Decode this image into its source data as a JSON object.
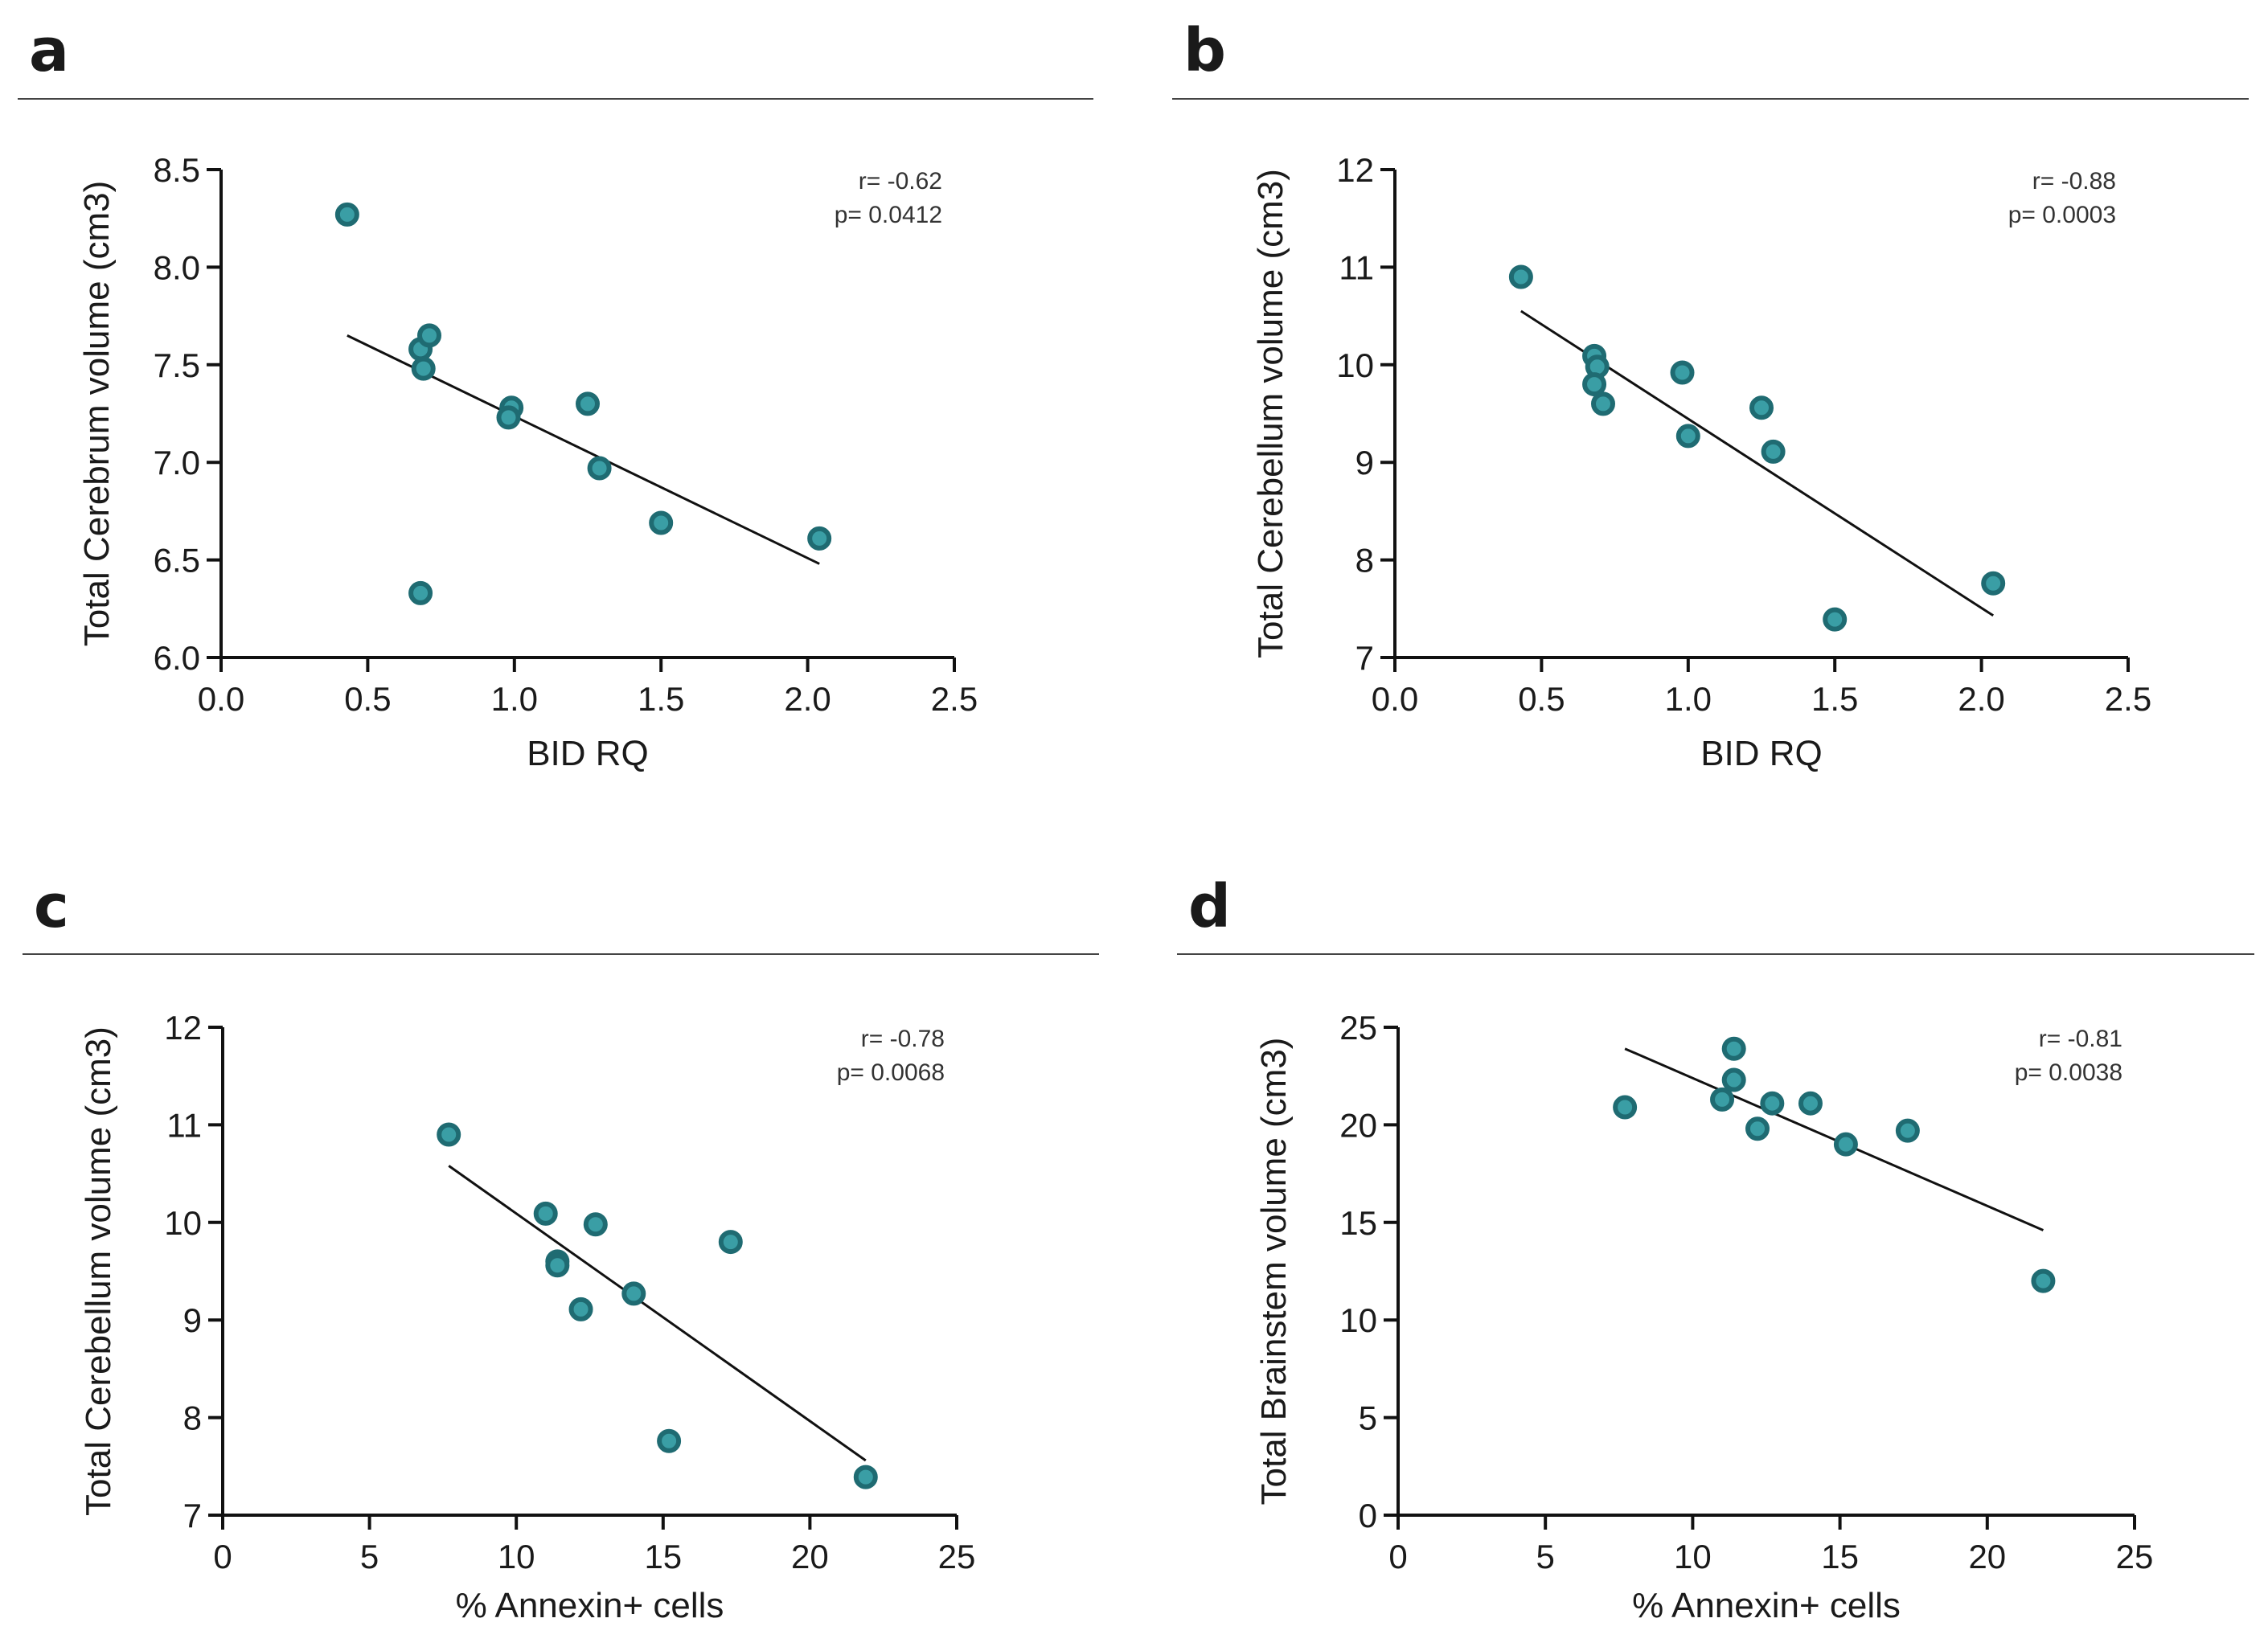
{
  "colors": {
    "point_fill": "#3a9ea5",
    "point_stroke": "#1f6b72",
    "line": "#111111",
    "axis": "#111111",
    "separator": "#444444"
  },
  "chart_data": [
    {
      "panel": "a",
      "type": "scatter",
      "xlabel": "BID RQ",
      "ylabel": "Total Cerebrum volume (cm3)",
      "xlim": [
        0,
        2.5
      ],
      "ylim": [
        6.0,
        8.5
      ],
      "xticks": [
        "0.0",
        "0.5",
        "1.0",
        "1.5",
        "2.0",
        "2.5"
      ],
      "xtick_values": [
        0,
        0.5,
        1.0,
        1.5,
        2.0,
        2.5
      ],
      "yticks": [
        "6.0",
        "6.5",
        "7.0",
        "7.5",
        "8.0",
        "8.5"
      ],
      "ytick_values": [
        6.0,
        6.5,
        7.0,
        7.5,
        8.0,
        8.5
      ],
      "stats": [
        "r= -0.62",
        "p= 0.0412"
      ],
      "points": [
        [
          0.43,
          8.27
        ],
        [
          0.68,
          7.58
        ],
        [
          0.71,
          7.65
        ],
        [
          0.69,
          7.48
        ],
        [
          0.99,
          7.28
        ],
        [
          0.98,
          7.23
        ],
        [
          1.25,
          7.3
        ],
        [
          1.29,
          6.97
        ],
        [
          1.5,
          6.69
        ],
        [
          2.04,
          6.61
        ],
        [
          0.68,
          6.33
        ]
      ],
      "fit": [
        [
          0.43,
          7.65
        ],
        [
          2.04,
          6.48
        ]
      ]
    },
    {
      "panel": "b",
      "type": "scatter",
      "xlabel": "BID RQ",
      "ylabel": "Total Cerebellum volume (cm3)",
      "xlim": [
        0,
        2.5
      ],
      "ylim": [
        7,
        12
      ],
      "xticks": [
        "0.0",
        "0.5",
        "1.0",
        "1.5",
        "2.0",
        "2.5"
      ],
      "xtick_values": [
        0,
        0.5,
        1.0,
        1.5,
        2.0,
        2.5
      ],
      "yticks": [
        "7",
        "8",
        "9",
        "10",
        "11",
        "12"
      ],
      "ytick_values": [
        7,
        8,
        9,
        10,
        11,
        12
      ],
      "stats": [
        "r= -0.88",
        "p= 0.0003"
      ],
      "points": [
        [
          0.43,
          10.9
        ],
        [
          0.68,
          10.09
        ],
        [
          0.69,
          9.98
        ],
        [
          0.68,
          9.8
        ],
        [
          0.71,
          9.6
        ],
        [
          0.98,
          9.92
        ],
        [
          1.0,
          9.27
        ],
        [
          1.25,
          9.56
        ],
        [
          1.29,
          9.11
        ],
        [
          1.5,
          7.39
        ],
        [
          2.04,
          7.76
        ]
      ],
      "fit": [
        [
          0.43,
          10.55
        ],
        [
          2.04,
          7.43
        ]
      ]
    },
    {
      "panel": "c",
      "type": "scatter",
      "xlabel": "% Annexin+ cells",
      "ylabel": "Total Cerebellum volume (cm3)",
      "xlim": [
        0,
        25
      ],
      "ylim": [
        7,
        12
      ],
      "xticks": [
        "0",
        "5",
        "10",
        "15",
        "20",
        "25"
      ],
      "xtick_values": [
        0,
        5,
        10,
        15,
        20,
        25
      ],
      "yticks": [
        "7",
        "8",
        "9",
        "10",
        "11",
        "12"
      ],
      "ytick_values": [
        7,
        8,
        9,
        10,
        11,
        12
      ],
      "stats": [
        "r= -0.78",
        "p= 0.0068"
      ],
      "points": [
        [
          7.7,
          10.9
        ],
        [
          11.0,
          10.09
        ],
        [
          11.4,
          9.6
        ],
        [
          11.4,
          9.56
        ],
        [
          12.7,
          9.98
        ],
        [
          12.2,
          9.11
        ],
        [
          14.0,
          9.27
        ],
        [
          17.3,
          9.8
        ],
        [
          15.2,
          7.76
        ],
        [
          21.9,
          7.39
        ]
      ],
      "fit": [
        [
          7.7,
          10.58
        ],
        [
          21.9,
          7.56
        ]
      ]
    },
    {
      "panel": "d",
      "type": "scatter",
      "xlabel": "% Annexin+ cells",
      "ylabel": "Total Brainstem volume (cm3)",
      "xlim": [
        0,
        25
      ],
      "ylim": [
        0,
        25
      ],
      "xticks": [
        "0",
        "5",
        "10",
        "15",
        "20",
        "25"
      ],
      "xtick_values": [
        0,
        5,
        10,
        15,
        20,
        25
      ],
      "yticks": [
        "0",
        "5",
        "10",
        "15",
        "20",
        "25"
      ],
      "ytick_values": [
        0,
        5,
        10,
        15,
        20,
        25
      ],
      "stats": [
        "r= -0.81",
        "p= 0.0038"
      ],
      "points": [
        [
          7.7,
          20.9
        ],
        [
          11.0,
          21.3
        ],
        [
          11.4,
          22.3
        ],
        [
          11.4,
          23.9
        ],
        [
          12.2,
          19.8
        ],
        [
          12.7,
          21.1
        ],
        [
          14.0,
          21.1
        ],
        [
          15.2,
          19.0
        ],
        [
          17.3,
          19.7
        ],
        [
          21.9,
          12.0
        ]
      ],
      "fit": [
        [
          7.7,
          23.9
        ],
        [
          21.9,
          14.6
        ]
      ]
    }
  ]
}
